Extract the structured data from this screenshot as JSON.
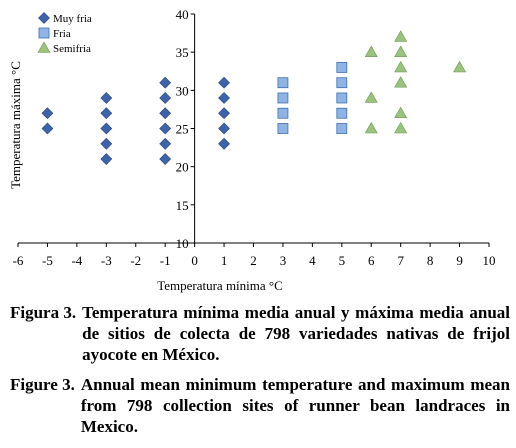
{
  "chart_data": {
    "type": "scatter",
    "xlabel": "Temperatura mínima °C",
    "ylabel": "Temperatura máxima °C",
    "xlim": [
      -6,
      10
    ],
    "ylim": [
      10,
      40
    ],
    "x_ticks": [
      "-6",
      "-5",
      "-4",
      "-3",
      "-2",
      "-1",
      "0",
      "1",
      "2",
      "3",
      "4",
      "5",
      "6",
      "7",
      "8",
      "9",
      "10"
    ],
    "y_ticks": [
      "10",
      "15",
      "20",
      "25",
      "30",
      "35",
      "40"
    ],
    "legend_position": "top-left",
    "series": [
      {
        "name": "Muy fria",
        "marker": "diamond",
        "color": "#3f63a8",
        "points": [
          [
            -5,
            25
          ],
          [
            -5,
            27
          ],
          [
            -3,
            21
          ],
          [
            -3,
            23
          ],
          [
            -3,
            25
          ],
          [
            -3,
            27
          ],
          [
            -3,
            29
          ],
          [
            -1,
            21
          ],
          [
            -1,
            23
          ],
          [
            -1,
            25
          ],
          [
            -1,
            27
          ],
          [
            -1,
            29
          ],
          [
            -1,
            31
          ],
          [
            1,
            23
          ],
          [
            1,
            25
          ],
          [
            1,
            27
          ],
          [
            1,
            29
          ],
          [
            1,
            31
          ]
        ]
      },
      {
        "name": "Fria",
        "marker": "square",
        "color": "#8fb4e3",
        "points": [
          [
            3,
            25
          ],
          [
            3,
            27
          ],
          [
            3,
            29
          ],
          [
            3,
            31
          ],
          [
            5,
            25
          ],
          [
            5,
            27
          ],
          [
            5,
            29
          ],
          [
            5,
            31
          ],
          [
            5,
            33
          ]
        ]
      },
      {
        "name": "Semifria",
        "marker": "triangle",
        "color": "#9bc27f",
        "points": [
          [
            6,
            25
          ],
          [
            6,
            29
          ],
          [
            6,
            35
          ],
          [
            7,
            25
          ],
          [
            7,
            27
          ],
          [
            7,
            31
          ],
          [
            7,
            33
          ],
          [
            7,
            35
          ],
          [
            7,
            37
          ],
          [
            9,
            33
          ]
        ]
      }
    ]
  },
  "captions": {
    "spanish_label": "Figura 3.",
    "spanish_text": "Temperatura mínima media anual y máxima media anual de sitios de colecta de 798 variedades nativas de frijol ayocote en México.",
    "english_label": "Figure 3.",
    "english_text": "Annual mean minimum temperature and maximum mean from 798 collection sites of runner bean landraces in Mexico."
  }
}
